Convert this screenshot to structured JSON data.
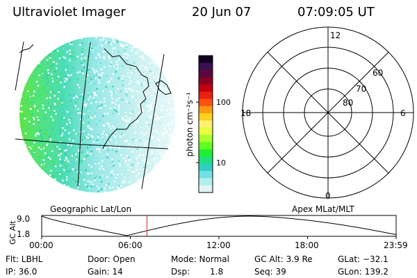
{
  "header": {
    "title": "Ultraviolet Imager",
    "date": "20 Jun 07",
    "time": "07:09:05 UT"
  },
  "left_panel": {
    "label": "Geographic Lat/Lon"
  },
  "right_panel": {
    "label": "Apex MLat/MLT",
    "mlt_labels": {
      "top": "12",
      "left": "18",
      "right": "6",
      "bottom": "0"
    },
    "lat_labels": [
      "60",
      "70",
      "80"
    ]
  },
  "colorbar": {
    "unit_label": "photon cm⁻²s⁻¹",
    "tick_100": "100",
    "tick_10": "10",
    "colors_top_to_bottom": [
      "#100020",
      "#3a1050",
      "#5a0840",
      "#880020",
      "#c00010",
      "#e82010",
      "#ff5010",
      "#ff9a10",
      "#ffd020",
      "#fff070",
      "#e6ff40",
      "#a8ff30",
      "#60ff20",
      "#20f030",
      "#20e080",
      "#30d0c0",
      "#70e0e0",
      "#b0eef0",
      "#e0f6f6"
    ]
  },
  "altitude_plot": {
    "ylabel": "GC Alt",
    "y_top": "9.0",
    "y_bottom": "1.8",
    "ticks": [
      "00:00",
      "06:00",
      "12:00",
      "18:00",
      "23:59"
    ],
    "current_time_fraction": 0.297
  },
  "info": {
    "flt": "Flt: LBHL",
    "ip": "IP: 36.0",
    "door": "Door: Open",
    "gain": "Gain: 14",
    "mode": "Mode: Normal",
    "dsp_label": "Dsp:",
    "dsp_value": "1.8",
    "gc_alt": "GC Alt: 3.9 Re",
    "seq": "Seq: 39",
    "glat": "GLat: −32.1",
    "glon": "GLon: 139.2"
  }
}
